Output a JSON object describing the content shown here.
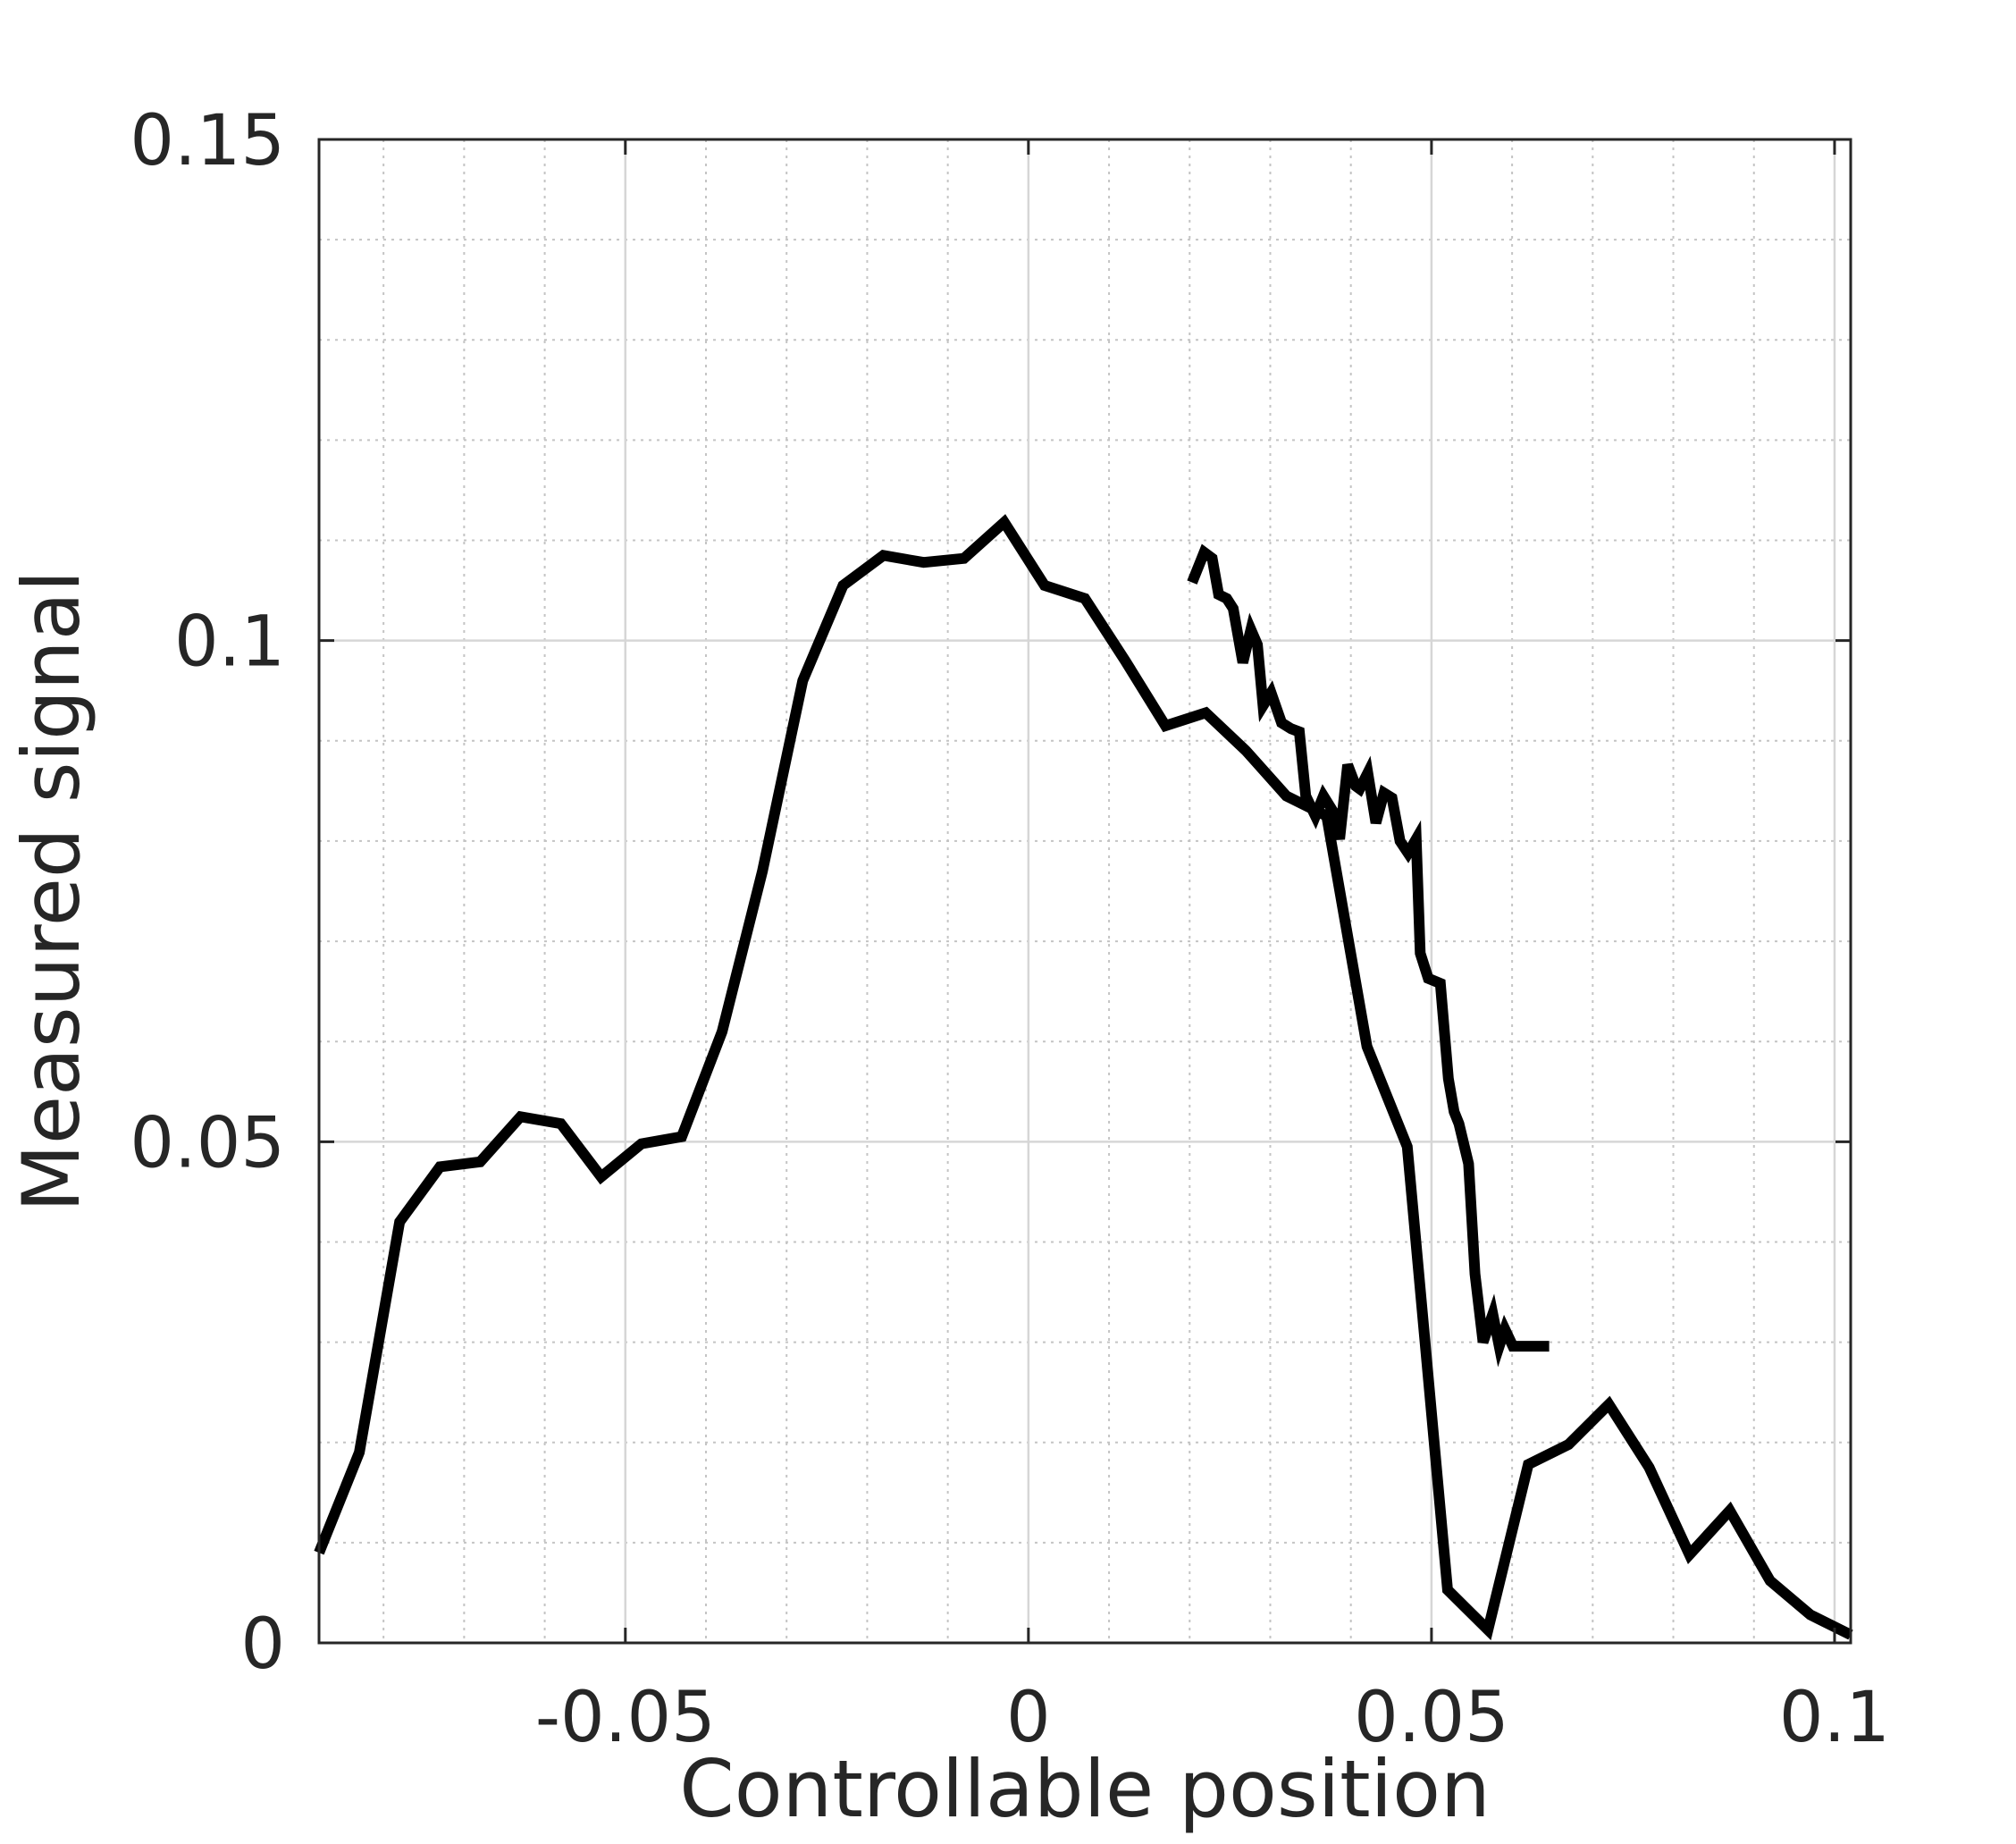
{
  "chart_data": {
    "type": "line",
    "xlabel": "Controllable position",
    "ylabel": "Measured signal",
    "xlim": [
      -0.088,
      0.102
    ],
    "ylim": [
      0,
      0.15
    ],
    "x_ticks": [
      -0.05,
      0,
      0.05,
      0.1
    ],
    "x_tick_labels": [
      "-0.05",
      "0",
      "0.05",
      "0.1"
    ],
    "y_ticks": [
      0,
      0.05,
      0.1,
      0.15
    ],
    "y_tick_labels": [
      "0",
      "0.05",
      "0.1",
      "0.15"
    ],
    "x_minor_step": 0.01,
    "y_minor_step": 0.01,
    "grid": true,
    "minor_grid": true,
    "colors": {
      "line": "#000000",
      "axes": "#262626",
      "grid": "#d6d6d6"
    },
    "series": [
      {
        "x": [
          -0.088,
          -0.083,
          -0.078,
          -0.073,
          -0.068,
          -0.063,
          -0.058,
          -0.053,
          -0.048,
          -0.043,
          -0.038,
          -0.033,
          -0.028,
          -0.023,
          -0.018,
          -0.013,
          -0.008,
          -0.003,
          0.002,
          0.007,
          0.012,
          0.017,
          0.022,
          0.027,
          0.032,
          0.037,
          0.042,
          0.047,
          0.052,
          0.057,
          0.062,
          0.067,
          0.072,
          0.077,
          0.082,
          0.087,
          0.092,
          0.097,
          0.102
        ],
        "y": [
          0.009,
          0.019,
          0.042,
          0.0475,
          0.048,
          0.0525,
          0.0518,
          0.0465,
          0.0498,
          0.0505,
          0.061,
          0.077,
          0.096,
          0.1055,
          0.1085,
          0.1078,
          0.1082,
          0.1118,
          0.1055,
          0.1042,
          0.098,
          0.0915,
          0.0928,
          0.089,
          0.0845,
          0.0825,
          0.0595,
          0.0495,
          0.0053,
          0.0013,
          0.0178,
          0.0198,
          0.0238,
          0.0175,
          0.0088,
          0.0132,
          0.0062,
          0.0028,
          0.0008
        ]
      },
      {
        "x": [
          0.0203,
          0.0218,
          0.0228,
          0.0236,
          0.0246,
          0.0254,
          0.0266,
          0.0276,
          0.0284,
          0.0291,
          0.0301,
          0.0314,
          0.0326,
          0.0336,
          0.0344,
          0.0356,
          0.0366,
          0.0379,
          0.0386,
          0.0396,
          0.0406,
          0.0411,
          0.0421,
          0.0431,
          0.0441,
          0.0451,
          0.0461,
          0.0471,
          0.0481,
          0.0486,
          0.0496,
          0.0511,
          0.0521,
          0.0528,
          0.0534,
          0.0546,
          0.0554,
          0.0564,
          0.0576,
          0.0584,
          0.0591,
          0.0601,
          0.0611,
          0.0621,
          0.0631,
          0.0636,
          0.0646
        ],
        "y": [
          0.1058,
          0.1088,
          0.1082,
          0.1046,
          0.1042,
          0.1032,
          0.0978,
          0.1011,
          0.0996,
          0.0935,
          0.0948,
          0.0918,
          0.0912,
          0.0909,
          0.0845,
          0.0825,
          0.0845,
          0.0828,
          0.0802,
          0.0876,
          0.0855,
          0.0852,
          0.0868,
          0.0818,
          0.0848,
          0.0843,
          0.08,
          0.0788,
          0.0802,
          0.0688,
          0.0663,
          0.0658,
          0.0563,
          0.053,
          0.0518,
          0.0478,
          0.0368,
          0.03,
          0.0328,
          0.0296,
          0.0313,
          0.0296,
          0.0296,
          0.0296,
          0.0296,
          0.0296,
          0.0296
        ]
      }
    ]
  }
}
